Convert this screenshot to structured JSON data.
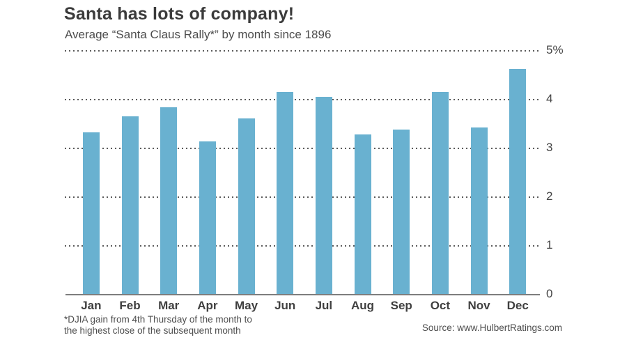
{
  "page": {
    "background": "#ffffff"
  },
  "chart_data": {
    "type": "bar",
    "title": "Santa has lots of company!",
    "subtitle": "Average “Santa Claus Rally*” by month since 1896",
    "categories": [
      "Jan",
      "Feb",
      "Mar",
      "Apr",
      "May",
      "Jun",
      "Jul",
      "Aug",
      "Sep",
      "Oct",
      "Nov",
      "Dec"
    ],
    "values": [
      3.32,
      3.65,
      3.83,
      3.14,
      3.61,
      4.14,
      4.04,
      3.28,
      3.38,
      4.14,
      3.42,
      4.61
    ],
    "unit": "%",
    "ylim": [
      0,
      5
    ],
    "yticks": [
      {
        "value": 5,
        "label": "5%"
      },
      {
        "value": 4,
        "label": "4"
      },
      {
        "value": 3,
        "label": "3"
      },
      {
        "value": 2,
        "label": "2"
      },
      {
        "value": 1,
        "label": "1"
      },
      {
        "value": 0,
        "label": "0"
      }
    ],
    "grid": "horizontal-dotted",
    "legend_position": "none",
    "bar_color": "#69b1d0",
    "gridline_color": "#5a5a5a",
    "axis_line_color": "#7e7e7e",
    "footnote": {
      "line1": "*DJIA gain from 4th Thursday of the month to",
      "line2": "the highest close of the subsequent month"
    },
    "source": "Source: www.HulbertRatings.com"
  }
}
